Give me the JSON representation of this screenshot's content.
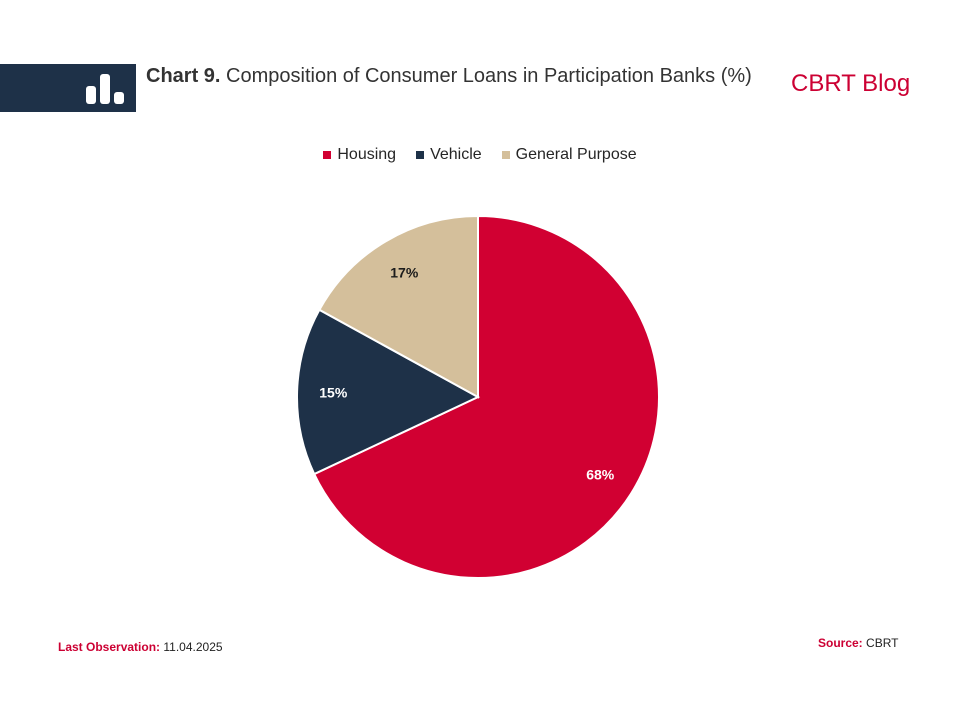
{
  "header": {
    "chart_number": "Chart 9.",
    "title": "Composition of Consumer Loans in Participation Banks (%)",
    "brand": "CBRT Blog"
  },
  "footer": {
    "last_observation_label": "Last Observation:",
    "last_observation_value": "11.04.2025",
    "source_label": "Source:",
    "source_value": "CBRT"
  },
  "colors": {
    "accent": "#cc0033",
    "navy": "#1e3148",
    "tan": "#d4bf9b"
  },
  "chart_data": {
    "type": "pie",
    "title": "Composition of Consumer Loans in Participation Banks (%)",
    "legend_position": "top",
    "slices": [
      {
        "label": "Housing",
        "value": 68,
        "display": "68%",
        "color": "#d10032",
        "label_color": "#ffffff"
      },
      {
        "label": "Vehicle",
        "value": 15,
        "display": "15%",
        "color": "#1e3148",
        "label_color": "#ffffff"
      },
      {
        "label": "General Purpose",
        "value": 17,
        "display": "17%",
        "color": "#d4bf9b",
        "label_color": "#1c1c1c"
      }
    ]
  }
}
